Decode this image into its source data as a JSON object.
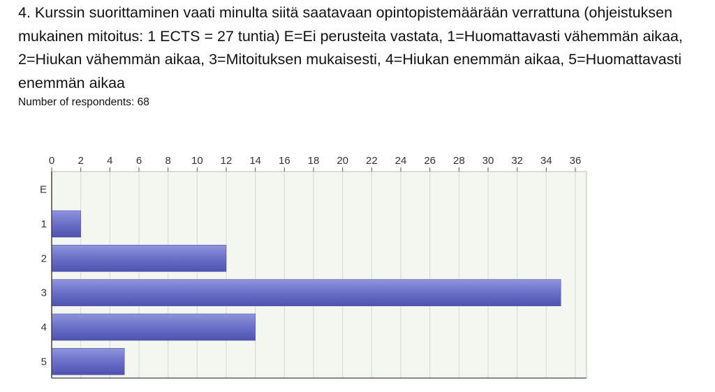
{
  "question": {
    "text": "4. Kurssin suorittaminen vaati minulta siitä saatavaan opintopistemäärään verrattuna (ohjeistuksen mukainen mitoitus: 1 ECTS = 27 tuntia) E=Ei perusteita vastata, 1=Huomattavasti vähemmän aikaa, 2=Hiukan vähemmän aikaa, 3=Mitoituksen mukaisesti, 4=Hiukan enemmän aikaa, 5=Huomattavasti enemmän aikaa"
  },
  "respondents": {
    "text": "Number of respondents: 68"
  },
  "chart_data": {
    "type": "bar",
    "orientation": "horizontal",
    "categories": [
      "E",
      "1",
      "2",
      "3",
      "4",
      "5"
    ],
    "values": [
      0,
      2,
      12,
      35,
      14,
      5
    ],
    "x_ticks": [
      "0",
      "2",
      "4",
      "6",
      "8",
      "10",
      "12",
      "14",
      "16",
      "18",
      "20",
      "22",
      "24",
      "26",
      "28",
      "30",
      "32",
      "34",
      "36"
    ],
    "xlim": [
      0,
      36
    ],
    "x_axis_position": "top",
    "grid": true,
    "bar_color": "#6a6fc8",
    "bar_color_light": "#8f95dc",
    "bar_color_dark": "#4e53ae",
    "plot_background": "#f4f6f0",
    "grid_color": "#d5d9d0",
    "axis_color": "#555555"
  }
}
